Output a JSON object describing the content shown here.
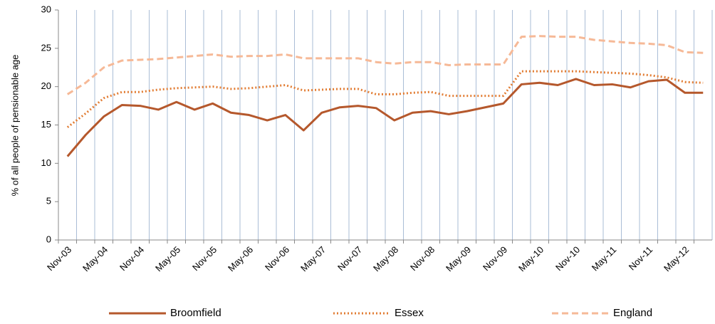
{
  "chart_data": {
    "type": "line",
    "y_label": "% of all people of pensionable age",
    "categories": [
      "Nov-03",
      null,
      "May-04",
      null,
      "Nov-04",
      null,
      "May-05",
      null,
      "Nov-05",
      null,
      "May-06",
      null,
      "Nov-06",
      null,
      "May-07",
      null,
      "Nov-07",
      null,
      "May-08",
      null,
      "Nov-08",
      null,
      "May-09",
      null,
      "Nov-09",
      null,
      "May-10",
      null,
      "Nov-10",
      null,
      "May-11",
      null,
      "Nov-11",
      null,
      "May-12",
      null
    ],
    "series": [
      {
        "name": "Broomfield",
        "color": "#b5582c",
        "style": "solid",
        "values": [
          10.9,
          13.7,
          16.1,
          17.6,
          17.5,
          17.0,
          18.0,
          17.0,
          17.8,
          16.6,
          16.3,
          15.6,
          16.3,
          14.3,
          16.6,
          17.3,
          17.5,
          17.2,
          15.6,
          16.6,
          16.8,
          16.4,
          16.8,
          17.3,
          17.8,
          20.3,
          20.5,
          20.2,
          21.0,
          20.2,
          20.3,
          19.9,
          20.7,
          20.9,
          19.2,
          19.2
        ]
      },
      {
        "name": "Essex",
        "color": "#e27d34",
        "style": "dotted",
        "values": [
          14.7,
          16.5,
          18.5,
          19.3,
          19.3,
          19.6,
          19.8,
          19.9,
          20.0,
          19.7,
          19.8,
          20.0,
          20.2,
          19.5,
          19.6,
          19.7,
          19.7,
          19.0,
          19.0,
          19.2,
          19.3,
          18.8,
          18.8,
          18.8,
          18.8,
          22.0,
          22.0,
          22.0,
          22.0,
          21.9,
          21.8,
          21.7,
          21.5,
          21.2,
          20.6,
          20.5
        ]
      },
      {
        "name": "England",
        "color": "#f6b997",
        "style": "dashed",
        "values": [
          19.0,
          20.5,
          22.5,
          23.4,
          23.5,
          23.6,
          23.8,
          24.0,
          24.2,
          23.9,
          24.0,
          24.0,
          24.2,
          23.7,
          23.7,
          23.7,
          23.7,
          23.2,
          23.0,
          23.2,
          23.2,
          22.8,
          22.9,
          22.9,
          22.9,
          26.5,
          26.6,
          26.5,
          26.5,
          26.1,
          25.9,
          25.7,
          25.6,
          25.4,
          24.5,
          24.4
        ]
      }
    ],
    "ylim": [
      0,
      30
    ],
    "yticks": [
      0,
      5,
      10,
      15,
      20,
      25,
      30
    ],
    "grid": "x",
    "legend": "bottom"
  }
}
